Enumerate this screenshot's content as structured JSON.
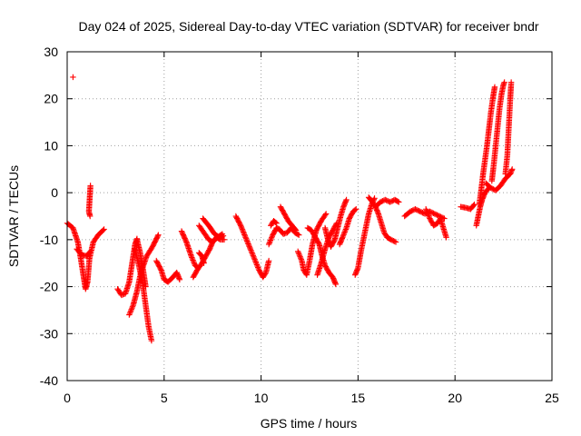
{
  "chart_data": {
    "type": "scatter",
    "title": "Day 024 of 2025, Sidereal Day-to-day VTEC variation (SDTVAR) for receiver bndr",
    "xlabel": "GPS time / hours",
    "ylabel": "SDTVAR / TECUs",
    "xlim": [
      0,
      25
    ],
    "ylim": [
      -40,
      30
    ],
    "x_ticks": [
      0,
      5,
      10,
      15,
      20,
      25
    ],
    "y_ticks": [
      -40,
      -30,
      -20,
      -10,
      0,
      10,
      20,
      30
    ],
    "grid": true,
    "marker": "plus",
    "color": "#ff0000",
    "segments": [
      {
        "points": [
          [
            0.3,
            24.6
          ]
        ]
      },
      {
        "points": [
          [
            0.0,
            -6.5
          ],
          [
            0.3,
            -7.5
          ],
          [
            0.55,
            -10.5
          ],
          [
            0.7,
            -14.0
          ],
          [
            0.85,
            -18.0
          ],
          [
            0.95,
            -20.5
          ],
          [
            1.05,
            -19.0
          ],
          [
            1.15,
            -14.0
          ],
          [
            1.35,
            -10.5
          ],
          [
            1.6,
            -9.0
          ],
          [
            1.9,
            -7.8
          ]
        ]
      },
      {
        "points": [
          [
            0.5,
            -12.0
          ],
          [
            0.75,
            -13.2
          ],
          [
            1.0,
            -13.5
          ],
          [
            1.2,
            -12.5
          ]
        ]
      },
      {
        "points": [
          [
            1.2,
            1.5
          ],
          [
            1.15,
            -2.0
          ],
          [
            1.12,
            -4.0
          ],
          [
            1.18,
            -5.0
          ]
        ]
      },
      {
        "points": [
          [
            2.6,
            -20.5
          ],
          [
            2.8,
            -21.8
          ],
          [
            3.0,
            -21.5
          ],
          [
            3.2,
            -19.0
          ],
          [
            3.35,
            -15.0
          ],
          [
            3.5,
            -11.0
          ],
          [
            3.6,
            -9.8
          ]
        ]
      },
      {
        "points": [
          [
            3.2,
            -26.0
          ],
          [
            3.4,
            -24.0
          ],
          [
            3.6,
            -21.0
          ],
          [
            3.8,
            -17.0
          ],
          [
            4.1,
            -13.5
          ],
          [
            4.4,
            -11.5
          ],
          [
            4.7,
            -9.0
          ]
        ]
      },
      {
        "points": [
          [
            3.5,
            -12.0
          ],
          [
            3.7,
            -15.5
          ],
          [
            3.9,
            -19.5
          ],
          [
            4.0,
            -22.5
          ],
          [
            4.1,
            -25.5
          ],
          [
            4.2,
            -28.5
          ],
          [
            4.35,
            -31.5
          ]
        ]
      },
      {
        "points": [
          [
            3.6,
            -10.0
          ],
          [
            3.75,
            -12.5
          ],
          [
            3.9,
            -16.0
          ],
          [
            4.05,
            -20.0
          ]
        ]
      },
      {
        "points": [
          [
            4.6,
            -14.5
          ],
          [
            4.85,
            -16.5
          ],
          [
            5.0,
            -18.5
          ],
          [
            5.2,
            -19.0
          ],
          [
            5.45,
            -18.0
          ],
          [
            5.65,
            -17.0
          ],
          [
            5.8,
            -18.5
          ]
        ]
      },
      {
        "points": [
          [
            5.9,
            -8.2
          ],
          [
            6.15,
            -10.5
          ],
          [
            6.4,
            -13.5
          ],
          [
            6.6,
            -15.5
          ],
          [
            6.75,
            -16.0
          ]
        ]
      },
      {
        "points": [
          [
            6.5,
            -18.0
          ],
          [
            6.7,
            -16.5
          ],
          [
            6.95,
            -15.0
          ],
          [
            7.15,
            -13.5
          ],
          [
            7.35,
            -12.0
          ],
          [
            7.5,
            -10.5
          ],
          [
            7.7,
            -9.5
          ],
          [
            7.9,
            -10.0
          ],
          [
            8.1,
            -10.0
          ]
        ]
      },
      {
        "points": [
          [
            6.8,
            -12.8
          ],
          [
            6.95,
            -13.5
          ],
          [
            7.05,
            -15.0
          ]
        ]
      },
      {
        "points": [
          [
            6.8,
            -7.0
          ],
          [
            7.05,
            -8.5
          ],
          [
            7.3,
            -10.0
          ],
          [
            7.5,
            -10.5
          ],
          [
            7.75,
            -9.5
          ],
          [
            8.0,
            -8.8
          ]
        ]
      },
      {
        "points": [
          [
            7.0,
            -5.5
          ],
          [
            7.3,
            -7.0
          ],
          [
            7.6,
            -8.8
          ],
          [
            7.85,
            -9.5
          ],
          [
            8.05,
            -9.2
          ]
        ]
      },
      {
        "points": [
          [
            8.7,
            -5.0
          ],
          [
            8.95,
            -7.0
          ],
          [
            9.2,
            -9.5
          ],
          [
            9.45,
            -12.0
          ],
          [
            9.7,
            -14.5
          ],
          [
            9.9,
            -16.5
          ],
          [
            10.1,
            -18.0
          ],
          [
            10.25,
            -17.0
          ],
          [
            10.4,
            -14.5
          ]
        ]
      },
      {
        "points": [
          [
            10.4,
            -11.0
          ],
          [
            10.6,
            -9.0
          ],
          [
            10.8,
            -7.5
          ],
          [
            10.95,
            -7.8
          ],
          [
            11.15,
            -8.8
          ],
          [
            11.35,
            -8.5
          ],
          [
            11.55,
            -7.5
          ],
          [
            11.75,
            -8.5
          ],
          [
            11.95,
            -9.0
          ]
        ]
      },
      {
        "points": [
          [
            10.5,
            -7.0
          ],
          [
            10.65,
            -6.0
          ],
          [
            10.8,
            -6.5
          ]
        ]
      },
      {
        "points": [
          [
            11.0,
            -3.0
          ],
          [
            11.2,
            -4.5
          ],
          [
            11.4,
            -6.0
          ],
          [
            11.6,
            -7.0
          ],
          [
            11.8,
            -8.0
          ]
        ]
      },
      {
        "points": [
          [
            11.9,
            -12.5
          ],
          [
            12.1,
            -14.5
          ],
          [
            12.2,
            -16.5
          ],
          [
            12.35,
            -17.5
          ],
          [
            12.5,
            -14.5
          ],
          [
            12.65,
            -11.0
          ],
          [
            12.85,
            -8.0
          ],
          [
            13.1,
            -6.0
          ],
          [
            13.35,
            -4.5
          ]
        ]
      },
      {
        "points": [
          [
            12.4,
            -7.5
          ],
          [
            12.6,
            -8.0
          ],
          [
            12.8,
            -9.5
          ],
          [
            13.0,
            -11.0
          ],
          [
            13.15,
            -13.5
          ],
          [
            13.3,
            -15.5
          ],
          [
            13.5,
            -17.0
          ],
          [
            13.7,
            -18.0
          ],
          [
            13.85,
            -19.5
          ]
        ]
      },
      {
        "points": [
          [
            12.9,
            -17.5
          ],
          [
            13.1,
            -15.0
          ],
          [
            13.3,
            -12.0
          ],
          [
            13.5,
            -9.5
          ],
          [
            13.7,
            -8.0
          ],
          [
            13.9,
            -6.5
          ]
        ]
      },
      {
        "points": [
          [
            13.3,
            -7.5
          ],
          [
            13.45,
            -10.0
          ],
          [
            13.6,
            -11.5
          ],
          [
            13.8,
            -10.0
          ],
          [
            13.95,
            -7.5
          ],
          [
            14.1,
            -5.0
          ],
          [
            14.25,
            -3.0
          ],
          [
            14.4,
            -1.5
          ]
        ]
      },
      {
        "points": [
          [
            14.05,
            -11.0
          ],
          [
            14.2,
            -9.5
          ],
          [
            14.4,
            -7.5
          ],
          [
            14.55,
            -5.5
          ],
          [
            14.75,
            -4.0
          ],
          [
            14.9,
            -3.5
          ]
        ]
      },
      {
        "points": [
          [
            14.85,
            -17.5
          ],
          [
            15.0,
            -16.0
          ],
          [
            15.15,
            -12.5
          ],
          [
            15.3,
            -9.5
          ],
          [
            15.45,
            -6.5
          ],
          [
            15.55,
            -4.5
          ],
          [
            15.7,
            -2.5
          ],
          [
            15.85,
            -1.2
          ]
        ]
      },
      {
        "points": [
          [
            15.55,
            -1.0
          ],
          [
            15.75,
            -2.0
          ],
          [
            15.9,
            -3.0
          ],
          [
            16.05,
            -4.5
          ],
          [
            16.2,
            -6.5
          ],
          [
            16.35,
            -8.5
          ],
          [
            16.5,
            -9.5
          ],
          [
            16.7,
            -10.0
          ],
          [
            16.95,
            -10.5
          ]
        ]
      },
      {
        "points": [
          [
            15.9,
            -3.0
          ],
          [
            16.15,
            -2.0
          ],
          [
            16.4,
            -1.5
          ],
          [
            16.65,
            -2.0
          ],
          [
            16.9,
            -1.5
          ],
          [
            17.1,
            -2.0
          ]
        ]
      },
      {
        "points": [
          [
            17.4,
            -5.0
          ],
          [
            17.7,
            -4.0
          ],
          [
            17.95,
            -3.5
          ],
          [
            18.2,
            -4.0
          ],
          [
            18.45,
            -4.5
          ],
          [
            18.7,
            -4.0
          ],
          [
            18.95,
            -4.5
          ],
          [
            19.2,
            -5.0
          ],
          [
            19.45,
            -5.5
          ]
        ]
      },
      {
        "points": [
          [
            18.5,
            -3.5
          ],
          [
            18.7,
            -5.5
          ],
          [
            18.9,
            -7.0
          ],
          [
            19.1,
            -6.5
          ],
          [
            19.25,
            -5.5
          ],
          [
            19.4,
            -7.5
          ],
          [
            19.55,
            -9.5
          ]
        ]
      },
      {
        "points": [
          [
            20.3,
            -3.0
          ],
          [
            20.55,
            -3.2
          ],
          [
            20.8,
            -3.5
          ],
          [
            21.0,
            -2.5
          ]
        ]
      },
      {
        "points": [
          [
            21.1,
            -7.0
          ],
          [
            21.2,
            -5.0
          ],
          [
            21.3,
            -3.0
          ],
          [
            21.4,
            -1.5
          ],
          [
            21.55,
            0.0
          ],
          [
            21.75,
            1.0
          ]
        ]
      },
      {
        "points": [
          [
            21.25,
            -2.5
          ],
          [
            21.35,
            0.5
          ],
          [
            21.45,
            4.0
          ],
          [
            21.55,
            7.0
          ],
          [
            21.65,
            10.0
          ],
          [
            21.75,
            13.5
          ],
          [
            21.85,
            17.0
          ],
          [
            21.95,
            20.0
          ],
          [
            22.05,
            22.5
          ]
        ]
      },
      {
        "points": [
          [
            21.9,
            2.5
          ],
          [
            22.0,
            6.0
          ],
          [
            22.1,
            10.0
          ],
          [
            22.2,
            14.0
          ],
          [
            22.3,
            18.0
          ],
          [
            22.4,
            21.0
          ],
          [
            22.5,
            23.0
          ],
          [
            22.55,
            23.5
          ]
        ]
      },
      {
        "points": [
          [
            21.6,
            2.0
          ],
          [
            21.85,
            1.0
          ],
          [
            22.1,
            0.5
          ],
          [
            22.35,
            1.5
          ],
          [
            22.6,
            3.0
          ],
          [
            22.85,
            4.0
          ],
          [
            22.95,
            5.0
          ]
        ]
      },
      {
        "points": [
          [
            22.6,
            4.0
          ],
          [
            22.7,
            8.0
          ],
          [
            22.75,
            12.0
          ],
          [
            22.8,
            16.0
          ],
          [
            22.85,
            20.0
          ],
          [
            22.9,
            23.5
          ]
        ]
      }
    ]
  }
}
